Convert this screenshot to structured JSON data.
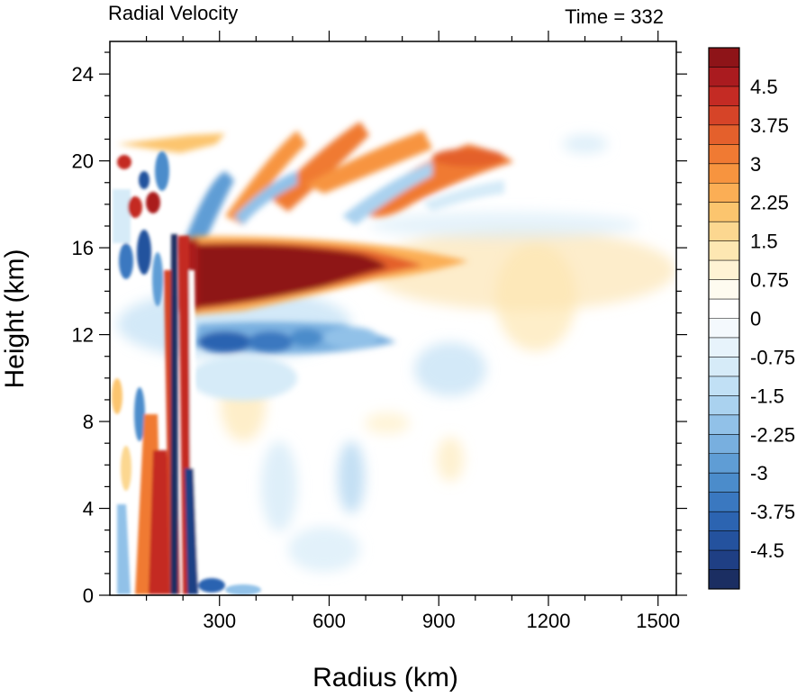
{
  "chart_data": {
    "type": "heatmap",
    "title_left": "Radial Velocity",
    "title_right": "Time = 332",
    "xlabel": "Radius (km)",
    "ylabel": "Height (km)",
    "xlim": [
      0,
      1550
    ],
    "ylim": [
      0,
      25.5
    ],
    "xticks": [
      300,
      600,
      900,
      1200,
      1500
    ],
    "yticks": [
      0,
      4,
      8,
      12,
      16,
      20,
      24
    ],
    "colorbar": {
      "range": [
        -5.25,
        5.25
      ],
      "step": 0.375,
      "labels": [
        4.5,
        3.75,
        3,
        2.25,
        1.5,
        0.75,
        0,
        -0.75,
        -1.5,
        -2.25,
        -3,
        -3.75,
        -4.5
      ],
      "colors": [
        "#1b2e62",
        "#1f3f84",
        "#24529e",
        "#2c64b1",
        "#3a78c0",
        "#4b8ccb",
        "#5f9dd5",
        "#78afdf",
        "#91c1e8",
        "#aad2ef",
        "#c1e0f5",
        "#d6ebf8",
        "#e7f3fb",
        "#f4f9fd",
        "#ffffff",
        "#fefbf0",
        "#fff3d4",
        "#fde7b2",
        "#fcd790",
        "#fcc56e",
        "#fbae55",
        "#f7943f",
        "#f07a33",
        "#e4602c",
        "#d64428",
        "#c42b24",
        "#aa1b1f",
        "#8e1418"
      ]
    },
    "features": [
      {
        "name": "upper-level outflow jet",
        "r": [
          170,
          1100
        ],
        "z": [
          12.8,
          16.3
        ],
        "peak": 5.5
      },
      {
        "name": "outflow layer",
        "r": [
          20,
          1420
        ],
        "z": [
          19,
          21
        ],
        "peak": 3
      },
      {
        "name": "mid-level inflow",
        "r": [
          180,
          800
        ],
        "z": [
          10.5,
          12.5
        ],
        "peak": -3.8
      },
      {
        "name": "inner-core updraft column",
        "r": [
          150,
          240
        ],
        "z": [
          0,
          16
        ],
        "peak": -5
      }
    ]
  }
}
